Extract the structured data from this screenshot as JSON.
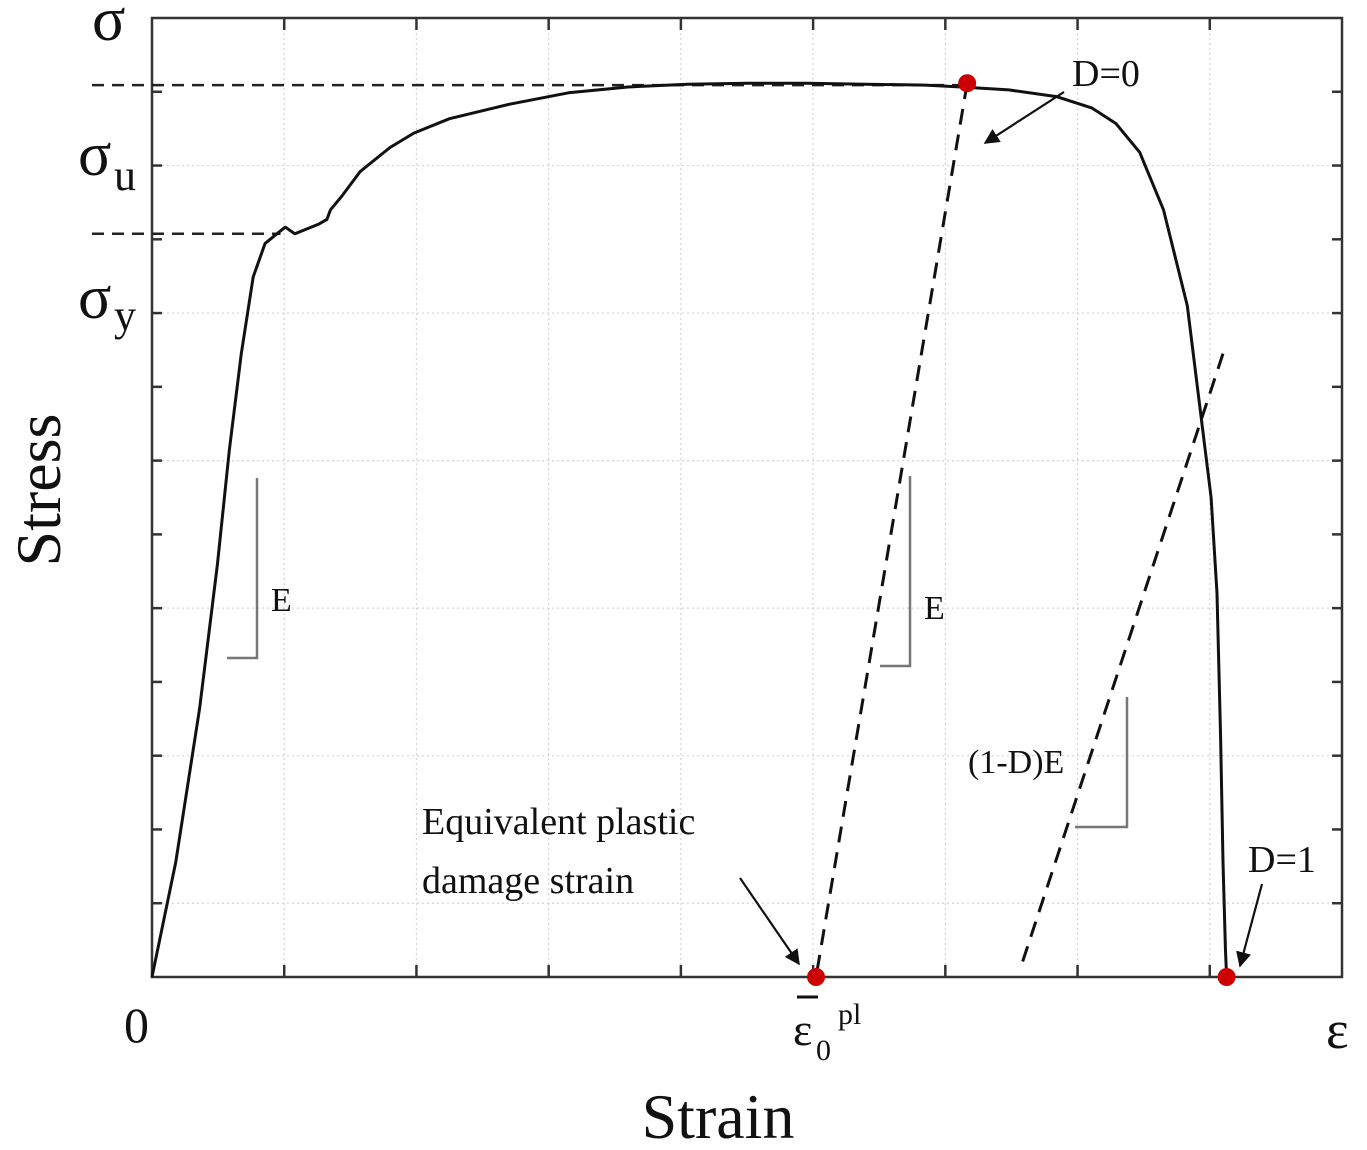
{
  "chart_data": {
    "type": "line",
    "xlabel": "Strain",
    "ylabel": "Stress",
    "x_axis_end_symbol": "ε",
    "y_axis_end_symbol": "σ",
    "origin_label": "0",
    "xlim": [
      0,
      1.0
    ],
    "ylim": [
      0,
      1.0
    ],
    "grid": true,
    "y_markers": [
      {
        "symbol": "σ",
        "subscript": "u",
        "value": 0.93
      },
      {
        "symbol": "σ",
        "subscript": "y",
        "value": 0.775
      }
    ],
    "x_markers": [
      {
        "symbol": "ε",
        "subscript": "0",
        "superscript": "pl",
        "overbar": true,
        "value": 0.558
      }
    ],
    "series": [
      {
        "x": [
          0,
          0.02,
          0.04,
          0.055,
          0.065,
          0.075,
          0.085,
          0.095,
          0.105,
          0.112,
          0.12,
          0.13,
          0.14,
          0.147,
          0.15,
          0.16,
          0.175,
          0.2,
          0.22,
          0.25,
          0.3,
          0.35,
          0.4,
          0.45,
          0.5,
          0.55,
          0.6,
          0.65,
          0.68,
          0.72,
          0.76,
          0.79,
          0.81,
          0.83,
          0.85,
          0.87,
          0.88,
          0.89,
          0.895,
          0.898,
          0.9,
          0.902,
          0.903
        ],
        "y": [
          0,
          0.12,
          0.28,
          0.43,
          0.55,
          0.65,
          0.73,
          0.765,
          0.775,
          0.782,
          0.775,
          0.78,
          0.785,
          0.79,
          0.8,
          0.815,
          0.84,
          0.865,
          0.88,
          0.895,
          0.91,
          0.922,
          0.928,
          0.931,
          0.932,
          0.932,
          0.931,
          0.93,
          0.928,
          0.925,
          0.918,
          0.906,
          0.89,
          0.86,
          0.8,
          0.7,
          0.6,
          0.5,
          0.4,
          0.25,
          0.12,
          0.03,
          0
        ]
      }
    ],
    "unloading_lines": [
      {
        "from": [
          0.685,
          0.932
        ],
        "to": [
          0.558,
          0
        ],
        "slope_label": "E"
      },
      {
        "from": [
          0.9,
          0.65
        ],
        "to": [
          0.73,
          0.01
        ],
        "slope_label": "(1-D)E"
      }
    ],
    "points": [
      {
        "x": 0.685,
        "y": 0.932,
        "color": "#cc0000"
      },
      {
        "x": 0.558,
        "y": 0,
        "color": "#cc0000"
      },
      {
        "x": 0.903,
        "y": 0,
        "color": "#cc0000"
      }
    ],
    "annotations": [
      {
        "text": "D=0",
        "x": 0.685,
        "y": 0.932
      },
      {
        "text": "D=1",
        "x": 0.903,
        "y": 0
      },
      {
        "text": "Equivalent plastic",
        "x": 0.558,
        "y": 0
      },
      {
        "text": "damage strain",
        "x": 0.558,
        "y": 0
      },
      {
        "text": "E",
        "x": 0.09,
        "y": 0.45
      },
      {
        "text": "E",
        "x": 0.64,
        "y": 0.45
      },
      {
        "text": "(1-D)E",
        "x": 0.8,
        "y": 0.25
      }
    ],
    "marker_color": "#cc0000"
  }
}
